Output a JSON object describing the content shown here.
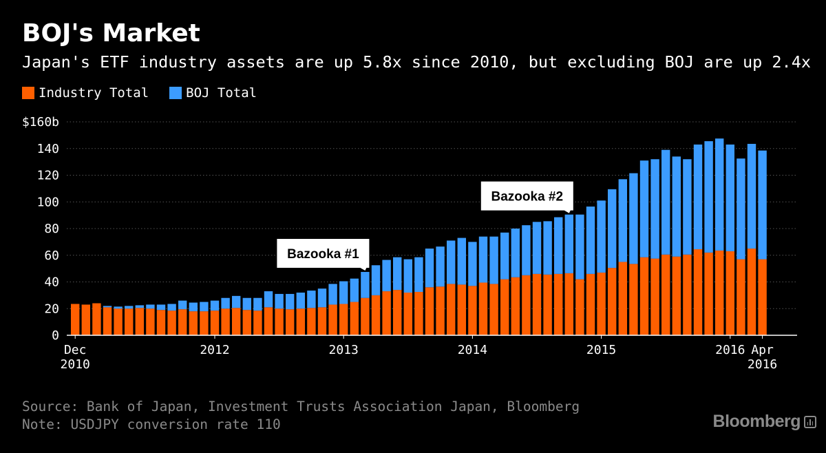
{
  "header": {
    "title": "BOJ's Market",
    "subtitle": "Japan's ETF industry assets are up 5.8x since 2010, but excluding BOJ are up 2.4x"
  },
  "colors": {
    "industry": "#ff5f00",
    "boj": "#3c9cff",
    "background": "#000000",
    "grid": "#555555",
    "callout_bg": "#ffffff"
  },
  "chart_data": {
    "type": "bar",
    "stacked": true,
    "title": "BOJ's Market",
    "ylim": [
      0,
      160
    ],
    "y_ticks": [
      {
        "value": 0,
        "label": "0"
      },
      {
        "value": 20,
        "label": "20"
      },
      {
        "value": 40,
        "label": "40"
      },
      {
        "value": 60,
        "label": "60"
      },
      {
        "value": 80,
        "label": "80"
      },
      {
        "value": 100,
        "label": "100"
      },
      {
        "value": 120,
        "label": "120"
      },
      {
        "value": 140,
        "label": "140"
      },
      {
        "value": 160,
        "label": "$160b"
      }
    ],
    "x_ticks": [
      {
        "index": 0,
        "label": "Dec",
        "label2": "2010"
      },
      {
        "index": 13,
        "label": "2012",
        "label2": ""
      },
      {
        "index": 25,
        "label": "2013",
        "label2": ""
      },
      {
        "index": 37,
        "label": "2014",
        "label2": ""
      },
      {
        "index": 49,
        "label": "2015",
        "label2": ""
      },
      {
        "index": 61,
        "label": "2016",
        "label2": ""
      },
      {
        "index": 64,
        "label": "Apr",
        "label2": "2016"
      }
    ],
    "series": [
      {
        "name": "Industry Total",
        "values": [
          23.5,
          23,
          24,
          21,
          20,
          20,
          20.5,
          20,
          19,
          18.5,
          19.5,
          18,
          18,
          18.5,
          20,
          20.5,
          19,
          18.5,
          21,
          20,
          19.5,
          20,
          20.5,
          21,
          23,
          23.5,
          25,
          28,
          30,
          33,
          34,
          32,
          32.5,
          36,
          36.5,
          38.5,
          38,
          37,
          39.5,
          38.5,
          42,
          43.5,
          45,
          46,
          45.5,
          46,
          46.5,
          42,
          46,
          47,
          50.5,
          55,
          53.5,
          58.5,
          57.5,
          60.5,
          59,
          60.5,
          64.5,
          62,
          63.5,
          63,
          57,
          65,
          57
        ]
      },
      {
        "name": "BOJ Total",
        "values": [
          0,
          0,
          0,
          1,
          1.5,
          2,
          2,
          3,
          4,
          5,
          6.5,
          6.5,
          7,
          7.5,
          8,
          9,
          9,
          9.5,
          12,
          11,
          11.5,
          12,
          13,
          14,
          15.5,
          17,
          17.5,
          19.5,
          22.5,
          23.5,
          24.5,
          25,
          26,
          29,
          30,
          32.5,
          35,
          33,
          34.5,
          35.5,
          35,
          36.5,
          37.5,
          39,
          40,
          42.5,
          44,
          48.5,
          50.5,
          54,
          59,
          62,
          68,
          72.5,
          74.5,
          78.5,
          75,
          71.5,
          78.5,
          83.5,
          84,
          80,
          75.5,
          78.5,
          81.5
        ]
      }
    ],
    "annotations": [
      {
        "label": "Bazooka #1",
        "index": 27
      },
      {
        "label": "Bazooka #2",
        "index": 46
      }
    ]
  },
  "footer": {
    "source": "Source: Bank of Japan, Investment Trusts Association Japan, Bloomberg",
    "note": "Note: USDJPY conversion rate 110",
    "brand": "Bloomberg"
  }
}
